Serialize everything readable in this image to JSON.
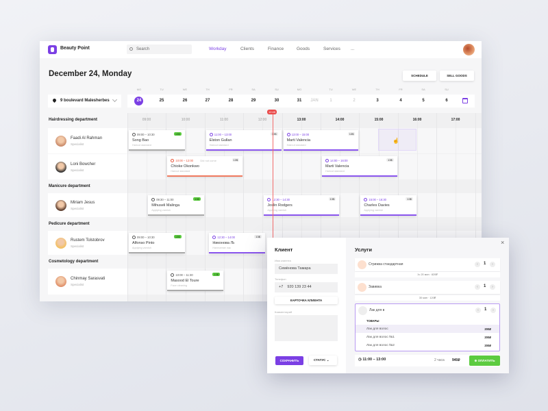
{
  "app": {
    "brand": "Beauty Point",
    "search_placeholder": "Search",
    "nav": [
      "Workday",
      "Clients",
      "Finance",
      "Goods",
      "Services",
      "..."
    ],
    "active_nav": "Workday"
  },
  "page": {
    "title": "December 24, Monday",
    "schedule": "SCHEDULE",
    "sell_goods": "SELL GOODS",
    "location": "9 boulevard Malesherbes"
  },
  "dates": [
    {
      "wd": "MO",
      "d": "24",
      "sel": true
    },
    {
      "wd": "TU",
      "d": "25"
    },
    {
      "wd": "WE",
      "d": "26"
    },
    {
      "wd": "TH",
      "d": "27"
    },
    {
      "wd": "FR",
      "d": "28"
    },
    {
      "wd": "SA",
      "d": "29"
    },
    {
      "wd": "SU",
      "d": "30"
    },
    {
      "wd": "MO",
      "d": "31"
    },
    {
      "wd": "",
      "d": "JAN",
      "dim": true
    },
    {
      "wd": "TU",
      "d": "1",
      "dim": true
    },
    {
      "wd": "WE",
      "d": "2",
      "dim": true
    },
    {
      "wd": "TH",
      "d": "3"
    },
    {
      "wd": "FR",
      "d": "4"
    },
    {
      "wd": "SA",
      "d": "5"
    },
    {
      "wd": "SU",
      "d": "6"
    }
  ],
  "hours": [
    "09:00",
    "10:00",
    "11:00",
    "12:00",
    "13:00",
    "14:00",
    "15:00",
    "16:00",
    "17:00"
  ],
  "current_time": "12:45",
  "departments": [
    {
      "name": "Hairdressing department",
      "employees": [
        {
          "name": "Faadi Al Rahman",
          "role": "Specialist"
        },
        {
          "name": "Loni Bowcher",
          "role": "Specialist"
        }
      ]
    },
    {
      "name": "Manicure department",
      "employees": [
        {
          "name": "Miriam Jesus",
          "role": "Specialist"
        }
      ]
    },
    {
      "name": "Pedicure department",
      "employees": [
        {
          "name": "Rustem Tolstobrov",
          "role": "Specialist"
        }
      ]
    },
    {
      "name": "Cosmetology department",
      "employees": [
        {
          "name": "Chinmay Sarasvati",
          "role": "Specialist"
        }
      ]
    }
  ],
  "appointments": [
    {
      "emp": 0,
      "start": "09:00",
      "end": "10:30",
      "client": "Song Bao",
      "service": "Haircut standard",
      "badge": "13$",
      "paid": true,
      "status": "done"
    },
    {
      "emp": 0,
      "start": "11:00",
      "end": "13:00",
      "client": "Elston Gullan",
      "service": "Haircut standard",
      "badge": "13$",
      "status": "active"
    },
    {
      "emp": 0,
      "start": "13:00",
      "end": "15:00",
      "client": "Marti Valencia",
      "service": "Haircut standard",
      "badge": "13$",
      "status": "active"
    },
    {
      "emp": 1,
      "start": "10:00",
      "end": "12:00",
      "client": "Chioke Okonkwo",
      "service": "Haircut standard",
      "badge": "13$",
      "status": "noshow",
      "note": "Did not come"
    },
    {
      "emp": 1,
      "start": "14:00",
      "end": "16:00",
      "client": "Marti Valencia",
      "service": "Haircut standard",
      "badge": "13$",
      "status": "active"
    },
    {
      "emp": 2,
      "start": "09:30",
      "end": "11:00",
      "client": "Mihuseli Malinga",
      "service": "Applying varnish",
      "badge": "13$",
      "paid": true,
      "status": "done"
    },
    {
      "emp": 2,
      "start": "12:30",
      "end": "14:30",
      "client": "Joslin Rodgers",
      "service": "Applying varnish",
      "badge": "13$",
      "status": "active"
    },
    {
      "emp": 2,
      "start": "15:00",
      "end": "16:30",
      "client": "Charles Davies",
      "service": "Applying varnish",
      "badge": "13$",
      "status": "active"
    },
    {
      "emp": 3,
      "start": "09:00",
      "end": "10:30",
      "client": "Alfonso Pinto",
      "service": "Applying varnish",
      "badge": "13$",
      "paid": true,
      "status": "done"
    },
    {
      "emp": 3,
      "start": "12:30",
      "end": "14:00",
      "client": "Никонова Љ",
      "service": "Нанесение лак",
      "badge": "13$",
      "status": "active"
    },
    {
      "emp": 4,
      "start": "10:00",
      "end": "11:30",
      "client": "Masood El Toure",
      "service": "Face cleaning",
      "badge": "13$",
      "paid": true,
      "status": "done"
    }
  ],
  "modal": {
    "client": {
      "title": "Клиент",
      "name_label": "Имя клиента",
      "name_value": "Семёнова Тамара",
      "phone_label": "Телефон",
      "phone_code": "+7",
      "phone_value": "920 139 23 44",
      "card_button": "КАРТОЧКА КЛИЕНТА",
      "comment_label": "Комментарий",
      "comment_value": "",
      "save": "СОХРАНИТЬ",
      "status": "СТАТУС"
    },
    "services": {
      "title": "Услуги",
      "items": [
        {
          "name": "Стрижка стандартная",
          "qty": "1",
          "summary": "1ч 20 мин · 820₽"
        },
        {
          "name": "Завивка",
          "qty": "1",
          "summary": "30 мин · 120₽"
        }
      ],
      "search_value": "Лак для в",
      "search_qty": "1",
      "group": "ТОВАРЫ",
      "results": [
        {
          "name": "Лак для волос",
          "price": "200₽"
        },
        {
          "name": "Лак для волос №1",
          "price": "200₽"
        },
        {
          "name": "Лак для волос №2",
          "price": "200₽"
        }
      ],
      "time": "11:00 – 13:00",
      "duration": "2 часа",
      "total": "940₽",
      "pay": "ОПЛАТИТЬ"
    }
  },
  "colors": {
    "accent": "#7b3fe4",
    "paid": "#5ccb40",
    "noshow": "#f07a5f",
    "now": "#ea4a4a"
  }
}
